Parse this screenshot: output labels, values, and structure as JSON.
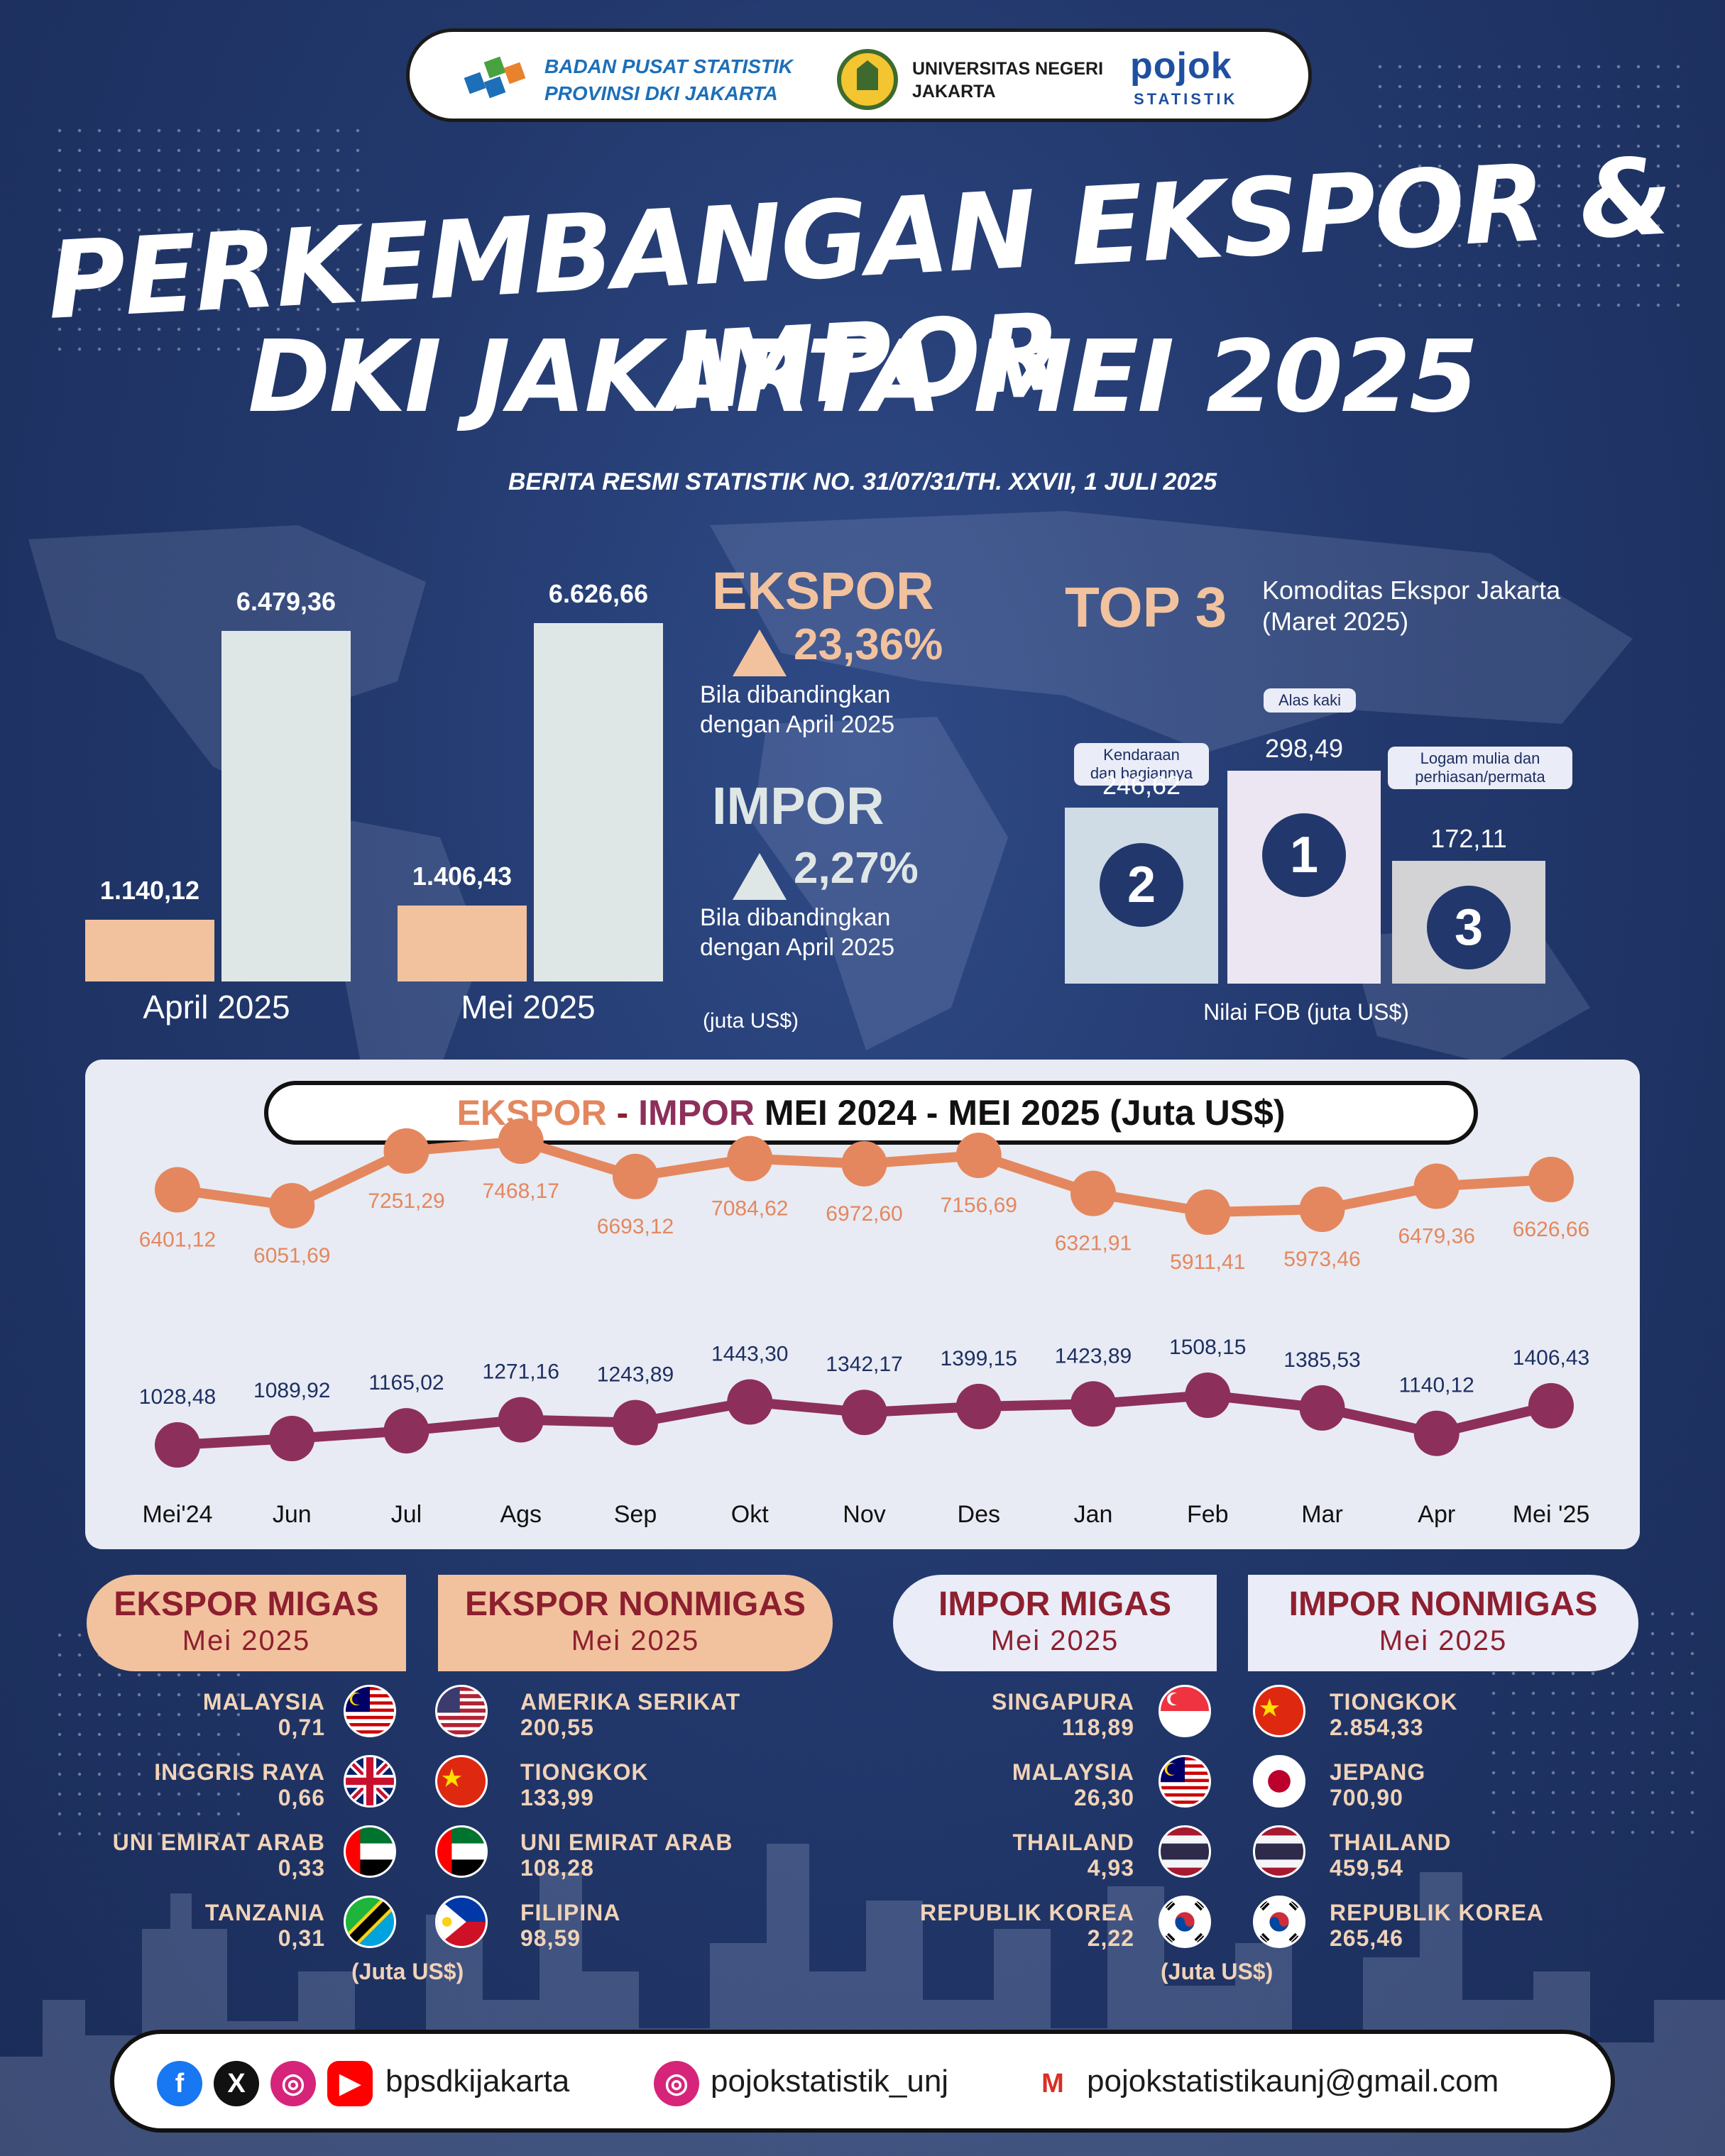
{
  "header": {
    "bps_line1": "BADAN PUSAT STATISTIK",
    "bps_line2": "PROVINSI DKI JAKARTA",
    "unj_line1": "UNIVERSITAS NEGERI",
    "unj_line2": "JAKARTA",
    "pojok": "pojok",
    "pojok_sub": "STATISTIK"
  },
  "title_line1": "PERKEMBANGAN EKSPOR & IMPOR",
  "title_line2": "DKI JAKARTA MEI 2025",
  "subtitle": "BERITA RESMI STATISTIK  NO. 31/07/31/TH. XXVII, 1 JULI 2025",
  "colors": {
    "ekspor": "#f2c29e",
    "impor_bar": "#dfe6e6",
    "line_ekspor": "#e4875e",
    "line_impor": "#8d2f5b",
    "accent_red": "#8d1f2f"
  },
  "chart_data": [
    {
      "type": "bar",
      "categories": [
        "April 2025",
        "Mei 2025"
      ],
      "series": [
        {
          "values": [
            1140.12,
            1406.43
          ]
        },
        {
          "values": [
            6479.36,
            6626.66
          ]
        }
      ],
      "value_labels": [
        [
          "1.140,12",
          "1.406,43"
        ],
        [
          "6.479,36",
          "6.626,66"
        ]
      ]
    },
    {
      "type": "bar",
      "categories": [
        "Kendaraan dan bagiannya",
        "Alas kaki",
        "Logam mulia dan perhiasan/permata"
      ],
      "ranks": [
        "2",
        "1",
        "3"
      ],
      "values": [
        246.62,
        298.49,
        172.11
      ],
      "value_labels": [
        "246,62",
        "298,49",
        "172,11"
      ],
      "xlabel": "Nilai FOB (juta US$)"
    },
    {
      "type": "line",
      "title_ekspor": "EKSPOR",
      "title_sep": " - ",
      "title_impor": "IMPOR",
      "title_rest": " MEI 2024 - MEI 2025 (Juta US$)",
      "categories": [
        "Mei'24",
        "Jun",
        "Jul",
        "Ags",
        "Sep",
        "Okt",
        "Nov",
        "Des",
        "Jan",
        "Feb",
        "Mar",
        "Apr",
        "Mei '25"
      ],
      "series": [
        {
          "values": [
            6401.12,
            6051.69,
            7251.29,
            7468.17,
            6693.12,
            7084.62,
            6972.6,
            7156.69,
            6321.91,
            5911.41,
            5973.46,
            6479.36,
            6626.66
          ],
          "labels": [
            "6401,12",
            "6051,69",
            "7251,29",
            "7468,17",
            "6693,12",
            "7084,62",
            "6972,60",
            "7156,69",
            "6321,91",
            "5911,41",
            "5973,46",
            "6479,36",
            "6626,66"
          ]
        },
        {
          "values": [
            1028.48,
            1089.92,
            1165.02,
            1271.16,
            1243.89,
            1443.3,
            1342.17,
            1399.15,
            1423.89,
            1508.15,
            1385.53,
            1140.12,
            1406.43
          ],
          "labels": [
            "1028,48",
            "1089,92",
            "1165,02",
            "1271,16",
            "1243,89",
            "1443,30",
            "1342,17",
            "1399,15",
            "1423,89",
            "1508,15",
            "1385,53",
            "1140,12",
            "1406,43"
          ]
        }
      ]
    }
  ],
  "summary": {
    "ekspor_label": "EKSPOR",
    "ekspor_pct": "23,36%",
    "impor_label": "IMPOR",
    "impor_pct": "2,27%",
    "compare1": "Bila dibandingkan",
    "compare2": "dengan April 2025",
    "unit": "(juta US$)"
  },
  "top3": {
    "title": "TOP 3",
    "sub1": "Komoditas Ekspor Jakarta",
    "sub2": "(Maret 2025)",
    "pill_left1": "Kendaraan",
    "pill_left2": "dan bagiannya",
    "pill_mid": "Alas kaki",
    "pill_right1": "Logam mulia dan",
    "pill_right2": "perhiasan/permata"
  },
  "sections": {
    "ekspor_migas": {
      "title": "EKSPOR MIGAS",
      "period": "Mei 2025",
      "items": [
        {
          "country": "MALAYSIA",
          "value": "0,71"
        },
        {
          "country": "INGGRIS RAYA",
          "value": "0,66"
        },
        {
          "country": "UNI EMIRAT ARAB",
          "value": "0,33"
        },
        {
          "country": "TANZANIA",
          "value": "0,31"
        }
      ]
    },
    "ekspor_nonmigas": {
      "title": "EKSPOR NONMIGAS",
      "period": "Mei 2025",
      "items": [
        {
          "country": "AMERIKA SERIKAT",
          "value": "200,55"
        },
        {
          "country": "TIONGKOK",
          "value": "133,99"
        },
        {
          "country": "UNI EMIRAT ARAB",
          "value": "108,28"
        },
        {
          "country": "FILIPINA",
          "value": "98,59"
        }
      ]
    },
    "impor_migas": {
      "title": "IMPOR MIGAS",
      "period": "Mei 2025",
      "items": [
        {
          "country": "SINGAPURA",
          "value": "118,89"
        },
        {
          "country": "MALAYSIA",
          "value": "26,30"
        },
        {
          "country": "THAILAND",
          "value": "4,93"
        },
        {
          "country": "REPUBLIK KOREA",
          "value": "2,22"
        }
      ]
    },
    "impor_nonmigas": {
      "title": "IMPOR NONMIGAS",
      "period": "Mei 2025",
      "items": [
        {
          "country": "TIONGKOK",
          "value": "2.854,33"
        },
        {
          "country": "JEPANG",
          "value": "700,90"
        },
        {
          "country": "THAILAND",
          "value": "459,54"
        },
        {
          "country": "REPUBLIK KOREA",
          "value": "265,46"
        }
      ]
    },
    "unit": "(Juta US$)"
  },
  "footer": {
    "handle1": "bpsdkijakarta",
    "handle2": "pojokstatistik_unj",
    "email": "pojokstatistikaunj@gmail.com"
  }
}
